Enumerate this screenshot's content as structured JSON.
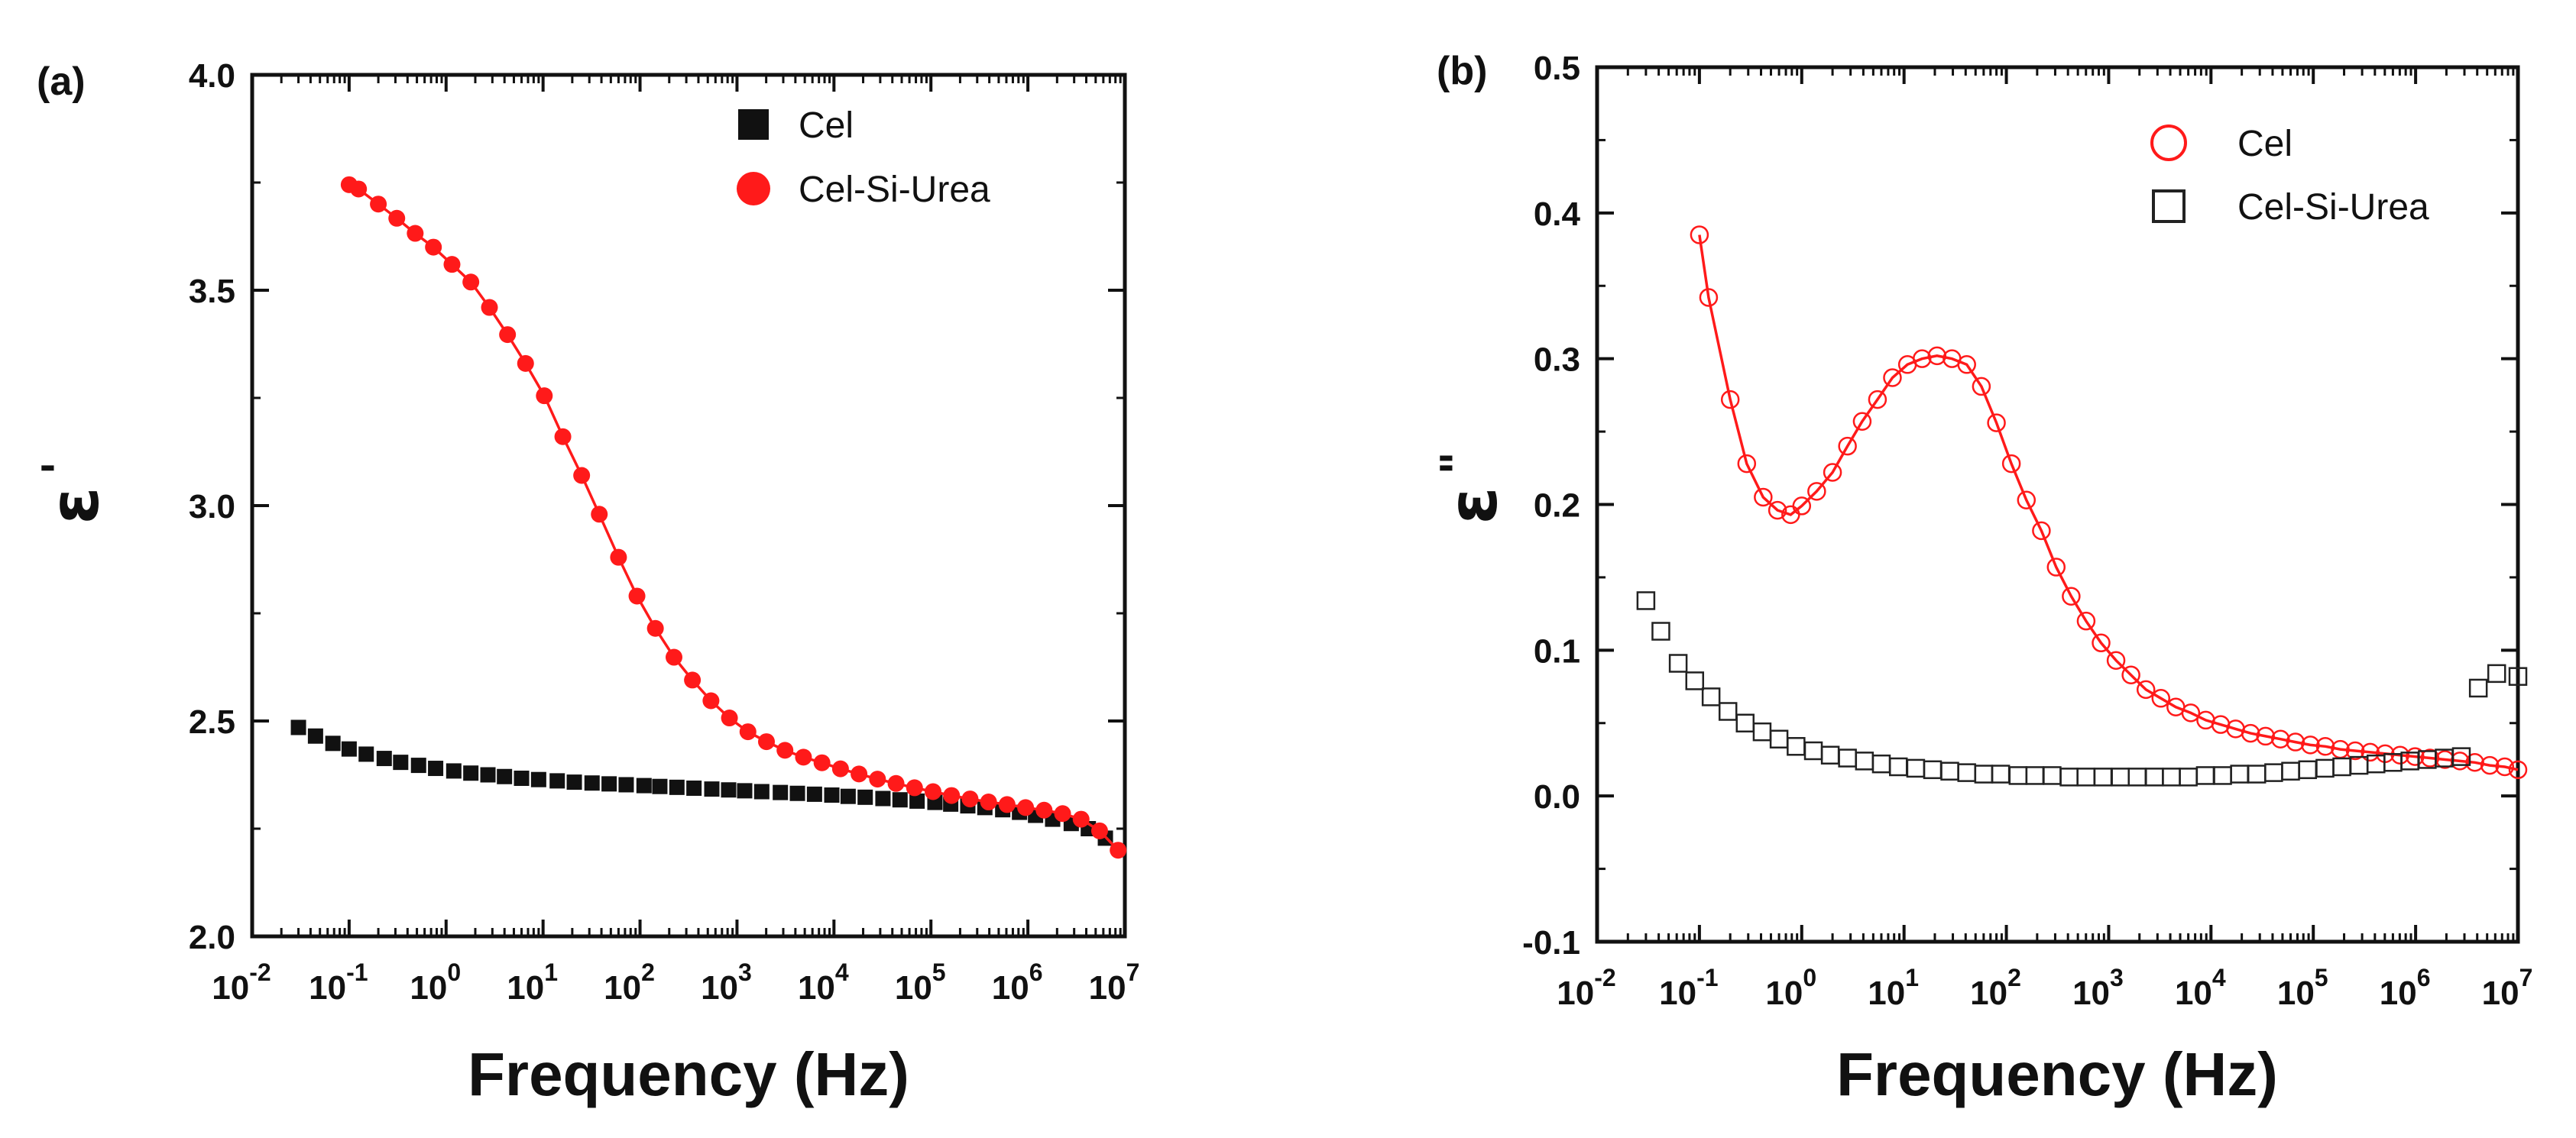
{
  "colors": {
    "red": "#ff1a1a",
    "black": "#111111",
    "open_black": "#222222"
  },
  "chart_data": [
    {
      "type": "scatter",
      "panel_label": "(a)",
      "xlabel": "Frequency (Hz)",
      "ylabel": "ε",
      "ylabel_mark": "'",
      "xscale": "log",
      "xlim": [
        0.01,
        10000000
      ],
      "ylim": [
        2.0,
        4.0
      ],
      "yticks": [
        2.0,
        2.5,
        3.0,
        3.5,
        4.0
      ],
      "ytick_labels": [
        "2.0",
        "2.5",
        "3.0",
        "3.5",
        "4.0"
      ],
      "xtick_exponents": [
        "-2",
        "-1",
        "0",
        "1",
        "2",
        "3",
        "4",
        "5",
        "6",
        "7"
      ],
      "xtick_base": "10",
      "legend_position": "top-right",
      "legend": [
        "Cel",
        "Cel-Si-Urea"
      ],
      "series": [
        {
          "name": "Cel",
          "marker": "filled-square",
          "color": "#111111",
          "fit_line": false,
          "x": [
            0.03,
            0.045,
            0.068,
            0.1,
            0.15,
            0.23,
            0.34,
            0.52,
            0.78,
            1.2,
            1.8,
            2.7,
            4,
            6,
            9,
            14,
            21,
            32,
            48,
            72,
            110,
            160,
            240,
            360,
            550,
            820,
            1200,
            1800,
            2800,
            4200,
            6300,
            9500,
            14000,
            21000,
            32000,
            48000,
            72000,
            110000,
            160000,
            240000,
            360000,
            550000,
            820000,
            1200000,
            1800000,
            2800000,
            4200000,
            6300000
          ],
          "y": [
            2.485,
            2.465,
            2.448,
            2.435,
            2.423,
            2.413,
            2.404,
            2.397,
            2.39,
            2.384,
            2.379,
            2.375,
            2.371,
            2.367,
            2.364,
            2.361,
            2.358,
            2.356,
            2.354,
            2.352,
            2.35,
            2.348,
            2.346,
            2.344,
            2.342,
            2.34,
            2.338,
            2.336,
            2.334,
            2.332,
            2.33,
            2.328,
            2.325,
            2.323,
            2.32,
            2.317,
            2.314,
            2.311,
            2.307,
            2.303,
            2.299,
            2.294,
            2.288,
            2.281,
            2.272,
            2.262,
            2.25,
            2.228
          ]
        },
        {
          "name": "Cel-Si-Urea",
          "marker": "filled-circle",
          "color": "#ff1a1a",
          "fit_line": true,
          "x": [
            0.1,
            0.125,
            0.2,
            0.31,
            0.48,
            0.74,
            1.15,
            1.8,
            2.8,
            4.3,
            6.6,
            10.3,
            16,
            25,
            38,
            60,
            93,
            144,
            224,
            347,
            539,
            836,
            1297,
            2013,
            3124,
            4849,
            7525,
            11679,
            18125,
            28129,
            43656,
            67752,
            105146,
            163181,
            253252,
            393035,
            609976,
            946660,
            1469177,
            2280101,
            3538629,
            5491804,
            8523098
          ],
          "y": [
            3.745,
            3.735,
            3.7,
            3.667,
            3.632,
            3.6,
            3.56,
            3.519,
            3.46,
            3.397,
            3.33,
            3.255,
            3.16,
            3.07,
            2.98,
            2.88,
            2.79,
            2.715,
            2.648,
            2.595,
            2.547,
            2.507,
            2.475,
            2.452,
            2.432,
            2.416,
            2.403,
            2.389,
            2.377,
            2.365,
            2.355,
            2.345,
            2.336,
            2.327,
            2.319,
            2.312,
            2.306,
            2.299,
            2.293,
            2.285,
            2.272,
            2.245,
            2.2
          ]
        }
      ]
    },
    {
      "type": "scatter",
      "panel_label": "(b)",
      "xlabel": "Frequency (Hz)",
      "ylabel": "ε",
      "ylabel_mark": "\"",
      "xscale": "log",
      "xlim": [
        0.01,
        10000000
      ],
      "ylim": [
        -0.1,
        0.5
      ],
      "yticks": [
        -0.1,
        0.0,
        0.1,
        0.2,
        0.3,
        0.4,
        0.5
      ],
      "ytick_labels": [
        "-0.1",
        "0.0",
        "0.1",
        "0.2",
        "0.3",
        "0.4",
        "0.5"
      ],
      "xtick_exponents": [
        "-2",
        "-1",
        "0",
        "1",
        "2",
        "3",
        "4",
        "5",
        "6",
        "7"
      ],
      "xtick_base": "10",
      "legend_position": "top-right",
      "legend": [
        "Cel",
        "Cel-Si-Urea"
      ],
      "series": [
        {
          "name": "Cel",
          "marker": "open-circle",
          "color": "#ff1a1a",
          "fit_line": true,
          "x": [
            0.1,
            0.123,
            0.2,
            0.29,
            0.42,
            0.58,
            0.78,
            1.0,
            1.4,
            2.0,
            2.8,
            3.9,
            5.5,
            7.7,
            10.8,
            15,
            21,
            29.4,
            41,
            57,
            80,
            112,
            157,
            220,
            307,
            430,
            602,
            843,
            1180,
            1652,
            2313,
            3238,
            4533,
            6346,
            8885,
            12440,
            17415,
            24381,
            34134,
            47787,
            66902,
            93663,
            131128,
            183580,
            257011,
            359816,
            503743,
            705240,
            987336,
            1382270,
            1935179,
            2709250,
            3792950,
            5310130,
            7434180,
            10000000
          ],
          "y": [
            0.385,
            0.342,
            0.272,
            0.228,
            0.205,
            0.196,
            0.193,
            0.199,
            0.209,
            0.222,
            0.24,
            0.257,
            0.272,
            0.287,
            0.296,
            0.3,
            0.302,
            0.3,
            0.296,
            0.281,
            0.256,
            0.228,
            0.203,
            0.182,
            0.157,
            0.137,
            0.12,
            0.105,
            0.093,
            0.083,
            0.073,
            0.067,
            0.061,
            0.057,
            0.052,
            0.049,
            0.046,
            0.043,
            0.041,
            0.039,
            0.037,
            0.035,
            0.034,
            0.032,
            0.031,
            0.03,
            0.029,
            0.028,
            0.027,
            0.026,
            0.025,
            0.024,
            0.023,
            0.021,
            0.02,
            0.018
          ]
        },
        {
          "name": "Cel-Si-Urea",
          "marker": "open-square",
          "color": "#222222",
          "fit_line": false,
          "x": [
            0.03,
            0.042,
            0.062,
            0.09,
            0.13,
            0.19,
            0.28,
            0.41,
            0.6,
            0.88,
            1.3,
            1.9,
            2.8,
            4.1,
            6,
            8.8,
            13,
            19,
            28,
            41,
            60,
            88,
            130,
            190,
            280,
            410,
            600,
            880,
            1300,
            1900,
            2800,
            4100,
            6000,
            8800,
            13000,
            19000,
            28000,
            41000,
            60000,
            88000,
            130000,
            190000,
            280000,
            410000,
            600000,
            880000,
            1300000,
            1900000,
            2800000,
            4100000,
            6200000,
            10000000
          ],
          "y": [
            0.134,
            0.113,
            0.091,
            0.079,
            0.068,
            0.058,
            0.05,
            0.044,
            0.039,
            0.034,
            0.031,
            0.028,
            0.026,
            0.024,
            0.022,
            0.02,
            0.019,
            0.018,
            0.017,
            0.016,
            0.015,
            0.015,
            0.014,
            0.014,
            0.014,
            0.013,
            0.013,
            0.013,
            0.013,
            0.013,
            0.013,
            0.013,
            0.013,
            0.014,
            0.014,
            0.015,
            0.015,
            0.016,
            0.017,
            0.018,
            0.019,
            0.02,
            0.021,
            0.022,
            0.023,
            0.024,
            0.025,
            0.026,
            0.027,
            0.074,
            0.084,
            0.082
          ]
        }
      ]
    }
  ]
}
